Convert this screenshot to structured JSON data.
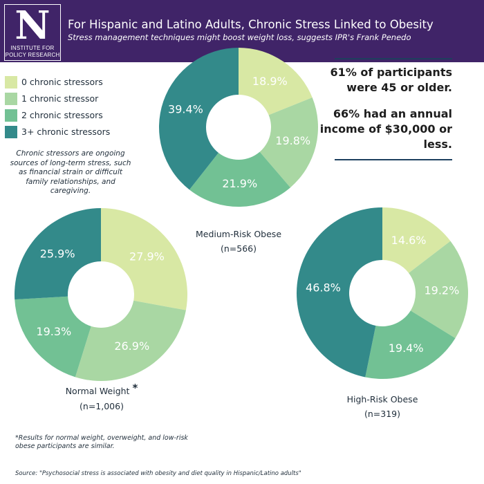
{
  "header": {
    "logo_letter": "N",
    "logo_text": "INSTITUTE FOR POLICY RESEARCH",
    "title": "For Hispanic and Latino Adults, Chronic Stress Linked to Obesity",
    "subtitle": "Stress management techniques might boost weight loss, suggests IPR's Frank Penedo"
  },
  "legend": {
    "items": [
      {
        "label": "0 chronic stressors",
        "color": "#d8e8a4"
      },
      {
        "label": "1 chronic stressor",
        "color": "#a9d7a3"
      },
      {
        "label": "2 chronic stressors",
        "color": "#72c194"
      },
      {
        "label": "3+ chronic stressors",
        "color": "#338a8a"
      }
    ],
    "note": "Chronic stressors are ongoing sources of long-term stress, such as financial strain or difficult family relationships, and caregiving."
  },
  "stats": {
    "stat1": "61% of participants were 45 or older.",
    "stat2": "66% had an annual income of $30,000 or less."
  },
  "chart_data": [
    {
      "type": "pie",
      "title": "Medium-Risk Obese",
      "n_label": "(n=566)",
      "categories": [
        "0 chronic stressors",
        "1 chronic stressor",
        "2 chronic stressors",
        "3+ chronic stressors"
      ],
      "values": [
        18.9,
        19.8,
        21.9,
        39.4
      ],
      "labels": [
        "18.9%",
        "19.8%",
        "21.9%",
        "39.4%"
      ],
      "colors": [
        "#d8e8a4",
        "#a9d7a3",
        "#72c194",
        "#338a8a"
      ]
    },
    {
      "type": "pie",
      "title": "Normal Weight",
      "title_mark": "*",
      "n_label": "(n=1,006)",
      "categories": [
        "0 chronic stressors",
        "1 chronic stressor",
        "2 chronic stressors",
        "3+ chronic stressors"
      ],
      "values": [
        27.9,
        26.9,
        19.3,
        25.9
      ],
      "labels": [
        "27.9%",
        "26.9%",
        "19.3%",
        "25.9%"
      ],
      "colors": [
        "#d8e8a4",
        "#a9d7a3",
        "#72c194",
        "#338a8a"
      ]
    },
    {
      "type": "pie",
      "title": "High-Risk Obese",
      "n_label": "(n=319)",
      "categories": [
        "0 chronic stressors",
        "1 chronic stressor",
        "2 chronic stressors",
        "3+ chronic stressors"
      ],
      "values": [
        14.6,
        19.2,
        19.4,
        46.8
      ],
      "labels": [
        "14.6%",
        "19.2%",
        "19.4%",
        "46.8%"
      ],
      "colors": [
        "#d8e8a4",
        "#a9d7a3",
        "#72c194",
        "#338a8a"
      ]
    }
  ],
  "footnote": "*Results for normal weight, overweight, and low-risk obese participants are similar.",
  "source": "Source: \"Psychosocial stress is associated with obesity and diet quality in Hispanic/Latino adults\""
}
